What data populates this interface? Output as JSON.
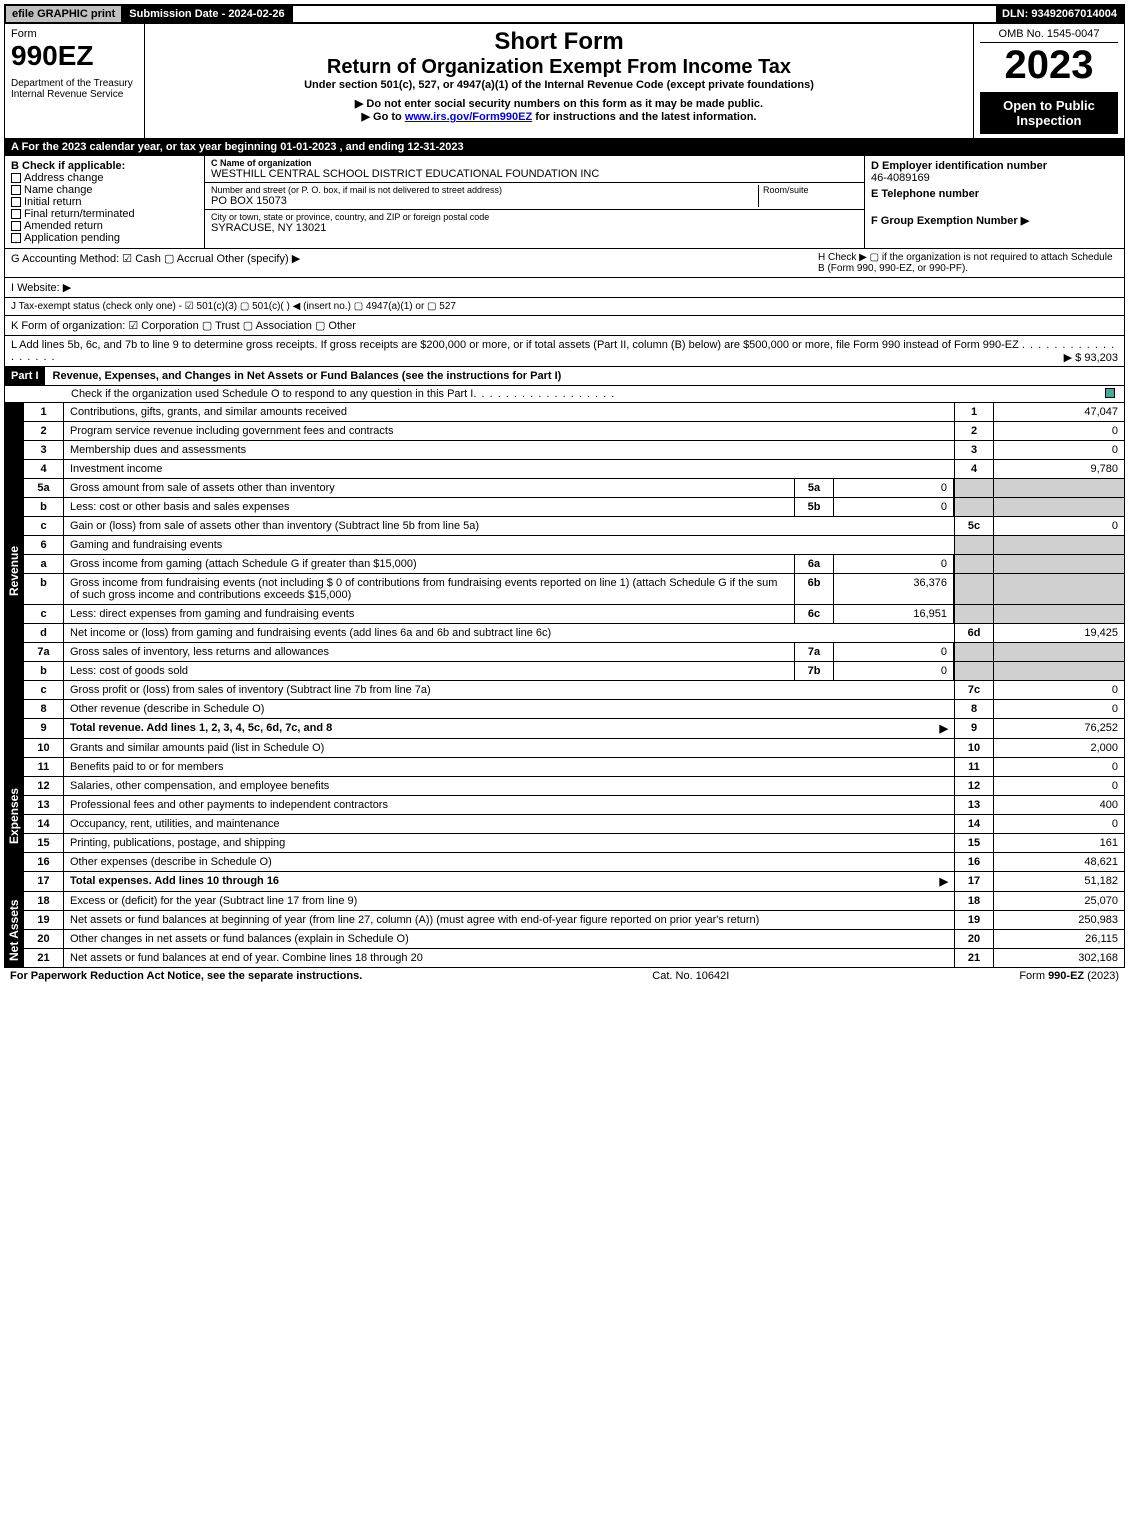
{
  "topbar": {
    "efile": "efile GRAPHIC print",
    "submission": "Submission Date - 2024-02-26",
    "dln": "DLN: 93492067014004"
  },
  "header": {
    "form_label": "Form",
    "form_no": "990EZ",
    "dept": "Department of the Treasury\nInternal Revenue Service",
    "title1": "Short Form",
    "title2": "Return of Organization Exempt From Income Tax",
    "subtitle": "Under section 501(c), 527, or 4947(a)(1) of the Internal Revenue Code (except private foundations)",
    "note1": "▶ Do not enter social security numbers on this form as it may be made public.",
    "note2": "▶ Go to www.irs.gov/Form990EZ for instructions and the latest information.",
    "omb": "OMB No. 1545-0047",
    "year": "2023",
    "open": "Open to Public Inspection"
  },
  "line_a": "A  For the 2023 calendar year, or tax year beginning 01-01-2023 , and ending 12-31-2023",
  "section_b": {
    "title": "B  Check if applicable:",
    "opts": [
      "Address change",
      "Name change",
      "Initial return",
      "Final return/terminated",
      "Amended return",
      "Application pending"
    ],
    "c_label": "C Name of organization",
    "c_name": "WESTHILL CENTRAL SCHOOL DISTRICT EDUCATIONAL FOUNDATION INC",
    "addr_label": "Number and street (or P. O. box, if mail is not delivered to street address)",
    "addr": "PO BOX 15073",
    "room_label": "Room/suite",
    "city_label": "City or town, state or province, country, and ZIP or foreign postal code",
    "city": "SYRACUSE, NY  13021",
    "d_label": "D Employer identification number",
    "d_val": "46-4089169",
    "e_label": "E Telephone number",
    "f_label": "F Group Exemption Number  ▶"
  },
  "lines": {
    "g": "G Accounting Method:  ☑ Cash  ▢ Accrual  Other (specify) ▶",
    "h": "H  Check ▶  ▢  if the organization is not required to attach Schedule B (Form 990, 990-EZ, or 990-PF).",
    "i": "I Website: ▶",
    "j": "J Tax-exempt status (check only one) - ☑ 501(c)(3) ▢ 501(c)(  ) ◀ (insert no.) ▢ 4947(a)(1) or ▢ 527",
    "k": "K Form of organization:  ☑ Corporation  ▢ Trust  ▢ Association  ▢ Other",
    "l": "L Add lines 5b, 6c, and 7b to line 9 to determine gross receipts. If gross receipts are $200,000 or more, or if total assets (Part II, column (B) below) are $500,000 or more, file Form 990 instead of Form 990-EZ",
    "l_val": "▶ $ 93,203"
  },
  "part1": {
    "label": "Part I",
    "title": "Revenue, Expenses, and Changes in Net Assets or Fund Balances (see the instructions for Part I)",
    "check_note": "Check if the organization used Schedule O to respond to any question in this Part I",
    "revenue_label": "Revenue",
    "expenses_label": "Expenses",
    "netassets_label": "Net Assets",
    "rows": [
      {
        "n": "1",
        "d": "Contributions, gifts, grants, and similar amounts received",
        "ln": "1",
        "v": "47,047"
      },
      {
        "n": "2",
        "d": "Program service revenue including government fees and contracts",
        "ln": "2",
        "v": "0"
      },
      {
        "n": "3",
        "d": "Membership dues and assessments",
        "ln": "3",
        "v": "0"
      },
      {
        "n": "4",
        "d": "Investment income",
        "ln": "4",
        "v": "9,780"
      },
      {
        "n": "5a",
        "d": "Gross amount from sale of assets other than inventory",
        "sn": "5a",
        "sv": "0"
      },
      {
        "n": "b",
        "d": "Less: cost or other basis and sales expenses",
        "sn": "5b",
        "sv": "0"
      },
      {
        "n": "c",
        "d": "Gain or (loss) from sale of assets other than inventory (Subtract line 5b from line 5a)",
        "ln": "5c",
        "v": "0"
      },
      {
        "n": "6",
        "d": "Gaming and fundraising events"
      },
      {
        "n": "a",
        "d": "Gross income from gaming (attach Schedule G if greater than $15,000)",
        "sn": "6a",
        "sv": "0"
      },
      {
        "n": "b",
        "d": "Gross income from fundraising events (not including $ 0 of contributions from fundraising events reported on line 1) (attach Schedule G if the sum of such gross income and contributions exceeds $15,000)",
        "sn": "6b",
        "sv": "36,376"
      },
      {
        "n": "c",
        "d": "Less: direct expenses from gaming and fundraising events",
        "sn": "6c",
        "sv": "16,951"
      },
      {
        "n": "d",
        "d": "Net income or (loss) from gaming and fundraising events (add lines 6a and 6b and subtract line 6c)",
        "ln": "6d",
        "v": "19,425"
      },
      {
        "n": "7a",
        "d": "Gross sales of inventory, less returns and allowances",
        "sn": "7a",
        "sv": "0"
      },
      {
        "n": "b",
        "d": "Less: cost of goods sold",
        "sn": "7b",
        "sv": "0"
      },
      {
        "n": "c",
        "d": "Gross profit or (loss) from sales of inventory (Subtract line 7b from line 7a)",
        "ln": "7c",
        "v": "0"
      },
      {
        "n": "8",
        "d": "Other revenue (describe in Schedule O)",
        "ln": "8",
        "v": "0"
      },
      {
        "n": "9",
        "d": "Total revenue. Add lines 1, 2, 3, 4, 5c, 6d, 7c, and 8",
        "ln": "9",
        "v": "76,252",
        "bold": true,
        "arrow": true
      }
    ],
    "exp_rows": [
      {
        "n": "10",
        "d": "Grants and similar amounts paid (list in Schedule O)",
        "ln": "10",
        "v": "2,000"
      },
      {
        "n": "11",
        "d": "Benefits paid to or for members",
        "ln": "11",
        "v": "0"
      },
      {
        "n": "12",
        "d": "Salaries, other compensation, and employee benefits",
        "ln": "12",
        "v": "0"
      },
      {
        "n": "13",
        "d": "Professional fees and other payments to independent contractors",
        "ln": "13",
        "v": "400"
      },
      {
        "n": "14",
        "d": "Occupancy, rent, utilities, and maintenance",
        "ln": "14",
        "v": "0"
      },
      {
        "n": "15",
        "d": "Printing, publications, postage, and shipping",
        "ln": "15",
        "v": "161"
      },
      {
        "n": "16",
        "d": "Other expenses (describe in Schedule O)",
        "ln": "16",
        "v": "48,621"
      },
      {
        "n": "17",
        "d": "Total expenses. Add lines 10 through 16",
        "ln": "17",
        "v": "51,182",
        "bold": true,
        "arrow": true
      }
    ],
    "net_rows": [
      {
        "n": "18",
        "d": "Excess or (deficit) for the year (Subtract line 17 from line 9)",
        "ln": "18",
        "v": "25,070"
      },
      {
        "n": "19",
        "d": "Net assets or fund balances at beginning of year (from line 27, column (A)) (must agree with end-of-year figure reported on prior year's return)",
        "ln": "19",
        "v": "250,983"
      },
      {
        "n": "20",
        "d": "Other changes in net assets or fund balances (explain in Schedule O)",
        "ln": "20",
        "v": "26,115"
      },
      {
        "n": "21",
        "d": "Net assets or fund balances at end of year. Combine lines 18 through 20",
        "ln": "21",
        "v": "302,168"
      }
    ]
  },
  "footer": {
    "left": "For Paperwork Reduction Act Notice, see the separate instructions.",
    "mid": "Cat. No. 10642I",
    "right": "Form 990-EZ (2023)"
  }
}
